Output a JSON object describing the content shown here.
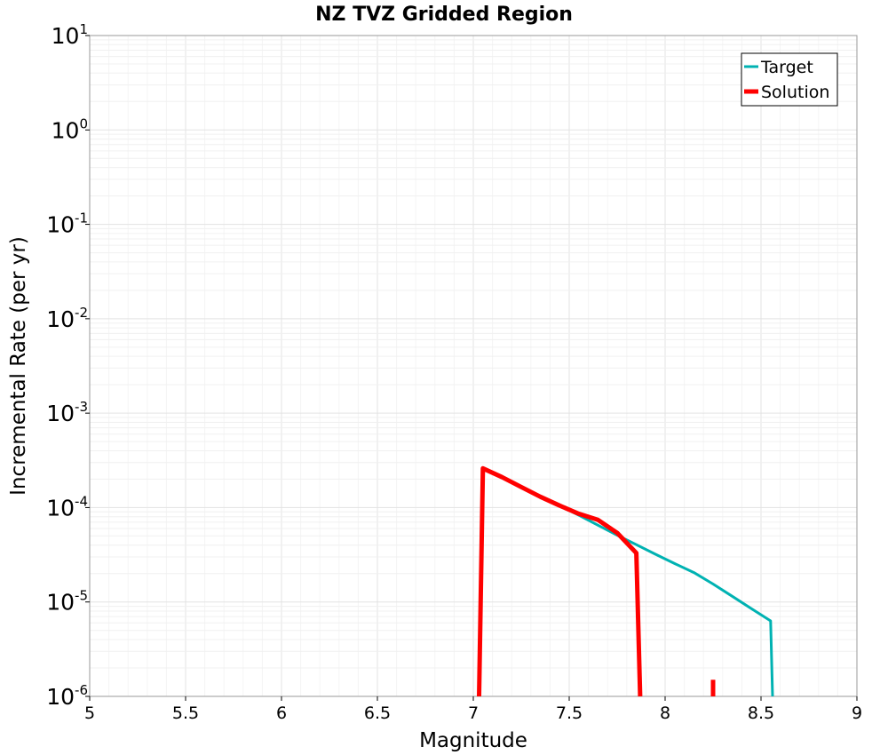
{
  "chart_data": {
    "type": "line",
    "title": "NZ TVZ Gridded Region",
    "xlabel": "Magnitude",
    "ylabel": "Incremental Rate (per yr)",
    "xlim": [
      5,
      9
    ],
    "ylim": [
      1e-06,
      10
    ],
    "yscale": "log",
    "grid": true,
    "legend_position": "top-right",
    "x_ticks": [
      5,
      5.5,
      6,
      6.5,
      7,
      7.5,
      8,
      8.5,
      9
    ],
    "x_tick_labels": [
      "5",
      "5.5",
      "6",
      "6.5",
      "7",
      "7.5",
      "8",
      "8.5",
      "9"
    ],
    "y_tick_exponents": [
      -6,
      -5,
      -4,
      -3,
      -2,
      -1,
      0,
      1
    ],
    "y_tick_base": "10",
    "series": [
      {
        "name": "Target",
        "color": "#00b2b2",
        "style": "thin",
        "points": [
          [
            7.05,
            0.00026
          ],
          [
            7.15,
            0.00021
          ],
          [
            7.25,
            0.000165
          ],
          [
            7.35,
            0.00013
          ],
          [
            7.45,
            0.000105
          ],
          [
            7.55,
            8.3e-05
          ],
          [
            7.65,
            6.5e-05
          ],
          [
            7.75,
            5.1e-05
          ],
          [
            7.85,
            4.05e-05
          ],
          [
            7.95,
            3.2e-05
          ],
          [
            8.05,
            2.55e-05
          ],
          [
            8.15,
            2.05e-05
          ],
          [
            8.25,
            1.55e-05
          ],
          [
            8.35,
            1.15e-05
          ],
          [
            8.45,
            8.5e-06
          ],
          [
            8.55,
            6.3e-06
          ],
          [
            8.56,
            1e-06
          ]
        ]
      },
      {
        "name": "Solution",
        "color": "#ff0000",
        "style": "thick",
        "segments": [
          [
            [
              7.03,
              1e-06
            ],
            [
              7.05,
              0.00026
            ],
            [
              7.15,
              0.00021
            ],
            [
              7.25,
              0.000165
            ],
            [
              7.35,
              0.00013
            ],
            [
              7.45,
              0.000105
            ],
            [
              7.55,
              8.6e-05
            ],
            [
              7.65,
              7.4e-05
            ],
            [
              7.75,
              5.4e-05
            ],
            [
              7.85,
              3.3e-05
            ],
            [
              7.87,
              1e-06
            ]
          ],
          [
            [
              8.25,
              1e-06
            ],
            [
              8.25,
              1.5e-06
            ]
          ]
        ]
      }
    ]
  }
}
